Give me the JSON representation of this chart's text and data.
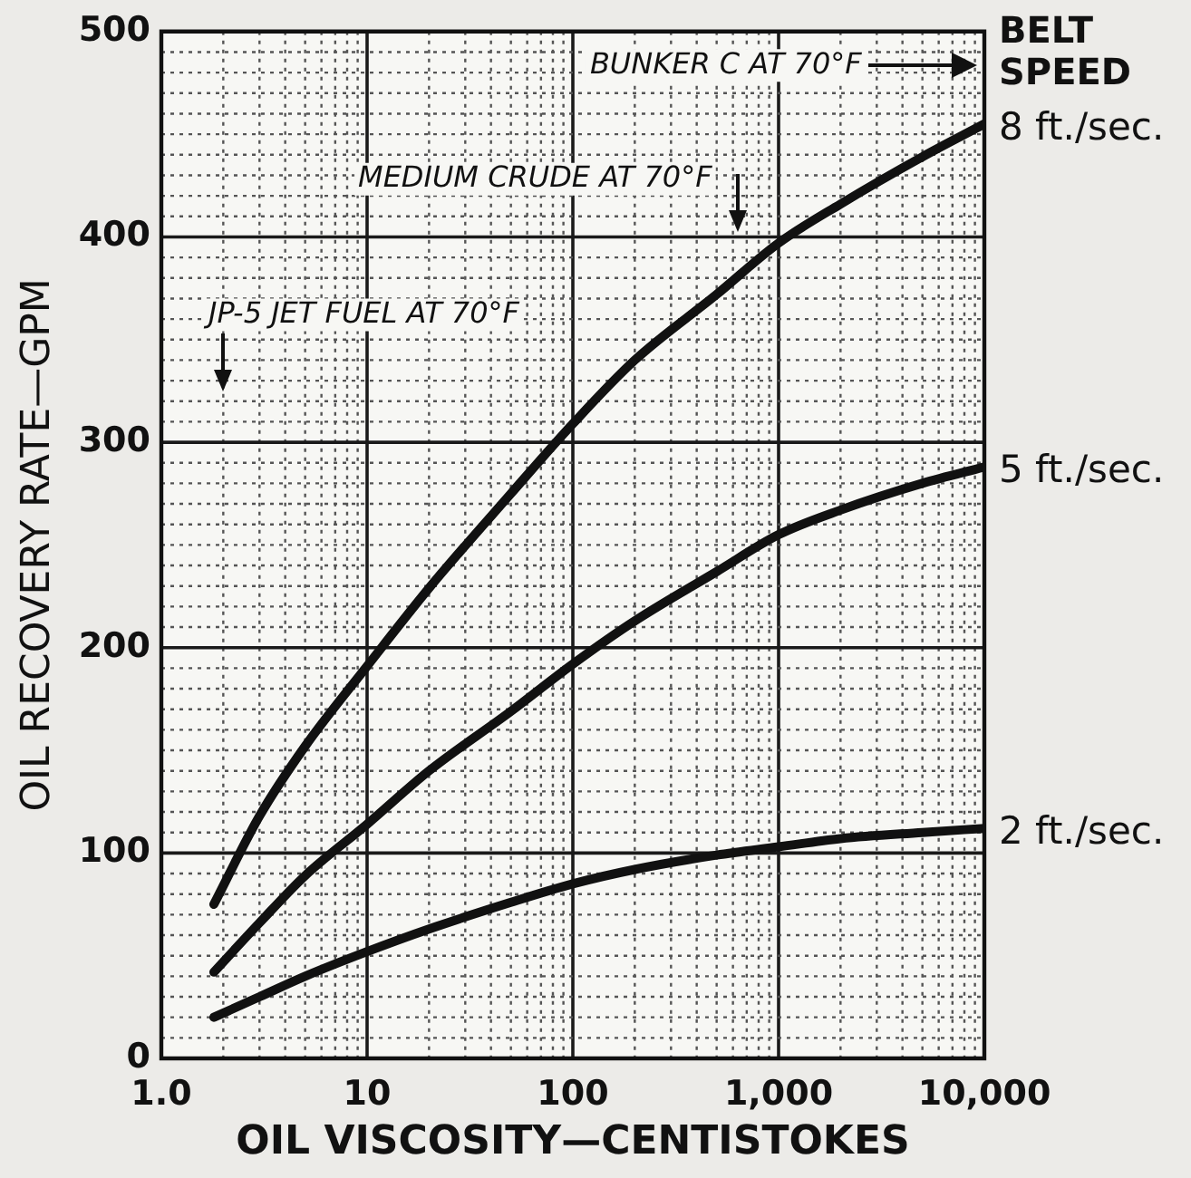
{
  "chart_data": {
    "type": "line",
    "xlabel": "OIL VISCOSITY—CENTISTOKES",
    "ylabel": "OIL RECOVERY RATE—GPM",
    "legend_title": "BELT SPEED",
    "x": [
      1.8,
      3,
      5,
      10,
      20,
      50,
      100,
      200,
      500,
      1000,
      2000,
      5000,
      10000
    ],
    "series": [
      {
        "name": "8 ft./sec.",
        "color": "#111111",
        "values": [
          75,
          118,
          152,
          191,
          229,
          275,
          309,
          340,
          372,
          397,
          416,
          439,
          455
        ]
      },
      {
        "name": "5 ft./sec.",
        "color": "#111111",
        "values": [
          42,
          66,
          89,
          114,
          140,
          169,
          192,
          213,
          237,
          255,
          267,
          280,
          288
        ]
      },
      {
        "name": "2 ft./sec.",
        "color": "#111111",
        "values": [
          20,
          30,
          40,
          52,
          63,
          76,
          85,
          92,
          99,
          103,
          107,
          110,
          112
        ]
      }
    ],
    "log": "x",
    "xlim": [
      1,
      10000
    ],
    "xticks": [
      {
        "value": 1,
        "label": "1.0"
      },
      {
        "value": 2,
        "label": null
      },
      {
        "value": 3,
        "label": null
      },
      {
        "value": 4,
        "label": null
      },
      {
        "value": 5,
        "label": null
      },
      {
        "value": 6,
        "label": null
      },
      {
        "value": 7,
        "label": null
      },
      {
        "value": 8,
        "label": null
      },
      {
        "value": 9,
        "label": null
      },
      10,
      {
        "value": 20,
        "label": null
      },
      {
        "value": 30,
        "label": null
      },
      {
        "value": 40,
        "label": null
      },
      {
        "value": 50,
        "label": null
      },
      {
        "value": 60,
        "label": null
      },
      {
        "value": 70,
        "label": null
      },
      {
        "value": 80,
        "label": null
      },
      {
        "value": 90,
        "label": null
      },
      100,
      {
        "value": 200,
        "label": null
      },
      {
        "value": 300,
        "label": null
      },
      {
        "value": 400,
        "label": null
      },
      {
        "value": 500,
        "label": null
      },
      {
        "value": 600,
        "label": null
      },
      {
        "value": 700,
        "label": null
      },
      {
        "value": 800,
        "label": null
      },
      {
        "value": 900,
        "label": null
      },
      {
        "value": 1000,
        "label": "1,000"
      },
      {
        "value": 2000,
        "label": null
      },
      {
        "value": 3000,
        "label": null
      },
      {
        "value": 4000,
        "label": null
      },
      {
        "value": 5000,
        "label": null
      },
      {
        "value": 6000,
        "label": null
      },
      {
        "value": 7000,
        "label": null
      },
      {
        "value": 8000,
        "label": null
      },
      {
        "value": 9000,
        "label": null
      },
      {
        "value": 10000,
        "label": "10,000"
      }
    ],
    "ylim": [
      0,
      500
    ],
    "yticks": [
      0,
      {
        "value": 10,
        "label": null
      },
      {
        "value": 20,
        "label": null
      },
      {
        "value": 30,
        "label": null
      },
      {
        "value": 40,
        "label": null
      },
      {
        "value": 50,
        "label": null
      },
      {
        "value": 60,
        "label": null
      },
      {
        "value": 70,
        "label": null
      },
      {
        "value": 80,
        "label": null
      },
      {
        "value": 90,
        "label": null
      },
      100,
      {
        "value": 110,
        "label": null
      },
      {
        "value": 120,
        "label": null
      },
      {
        "value": 130,
        "label": null
      },
      {
        "value": 140,
        "label": null
      },
      {
        "value": 150,
        "label": null
      },
      {
        "value": 160,
        "label": null
      },
      {
        "value": 170,
        "label": null
      },
      {
        "value": 180,
        "label": null
      },
      {
        "value": 190,
        "label": null
      },
      200,
      {
        "value": 210,
        "label": null
      },
      {
        "value": 220,
        "label": null
      },
      {
        "value": 230,
        "label": null
      },
      {
        "value": 240,
        "label": null
      },
      {
        "value": 250,
        "label": null
      },
      {
        "value": 260,
        "label": null
      },
      {
        "value": 270,
        "label": null
      },
      {
        "value": 280,
        "label": null
      },
      {
        "value": 290,
        "label": null
      },
      300,
      {
        "value": 310,
        "label": null
      },
      {
        "value": 320,
        "label": null
      },
      {
        "value": 330,
        "label": null
      },
      {
        "value": 340,
        "label": null
      },
      {
        "value": 350,
        "label": null
      },
      {
        "value": 360,
        "label": null
      },
      {
        "value": 370,
        "label": null
      },
      {
        "value": 380,
        "label": null
      },
      {
        "value": 390,
        "label": null
      },
      400,
      {
        "value": 410,
        "label": null
      },
      {
        "value": 420,
        "label": null
      },
      {
        "value": 430,
        "label": null
      },
      {
        "value": 440,
        "label": null
      },
      {
        "value": 450,
        "label": null
      },
      {
        "value": 460,
        "label": null
      },
      {
        "value": 470,
        "label": null
      },
      {
        "value": 480,
        "label": null
      },
      {
        "value": 490,
        "label": null
      },
      500
    ],
    "grid": true,
    "marker": "none",
    "line_style": "solid",
    "annotations": [
      "BUNKER C AT 70°F",
      "MEDIUM CRUDE AT 70°F",
      "JP-5 JET FUEL AT 70°F"
    ]
  }
}
